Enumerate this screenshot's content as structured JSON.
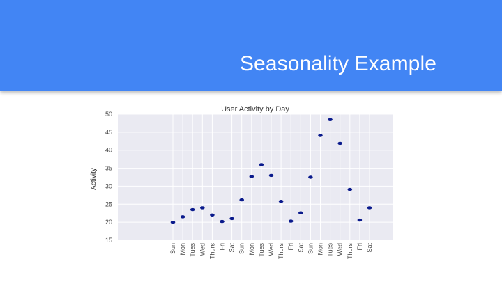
{
  "slide": {
    "title": "Seasonality Example"
  },
  "colors": {
    "header": "#4285f4",
    "plot_background": "#eaeaf2",
    "point": "#0a1a8c"
  },
  "chart_data": {
    "type": "scatter",
    "title": "User Activity by Day",
    "xlabel": "",
    "ylabel": "Activity",
    "categories": [
      "Sun",
      "Mon",
      "Tues",
      "Wed",
      "Thurs",
      "Fri",
      "Sat",
      "Sun",
      "Mon",
      "Tues",
      "Wed",
      "Thurs",
      "Fri",
      "Sat",
      "Sun",
      "Mon",
      "Tues",
      "Wed",
      "Thurs",
      "Fri",
      "Sat"
    ],
    "values": [
      20,
      21.5,
      23.5,
      24,
      22,
      20.2,
      21,
      26.2,
      32.7,
      36,
      33,
      25.8,
      20.3,
      22.6,
      32.5,
      44.1,
      48.5,
      41.9,
      29.1,
      20.6,
      24
    ],
    "ylim": [
      15,
      50
    ],
    "yticks": [
      15,
      20,
      25,
      30,
      35,
      40,
      45,
      50
    ],
    "ytick_labels": [
      "15",
      "20",
      "25",
      "30",
      "35",
      "40",
      "45",
      "50"
    ],
    "grid": true
  }
}
